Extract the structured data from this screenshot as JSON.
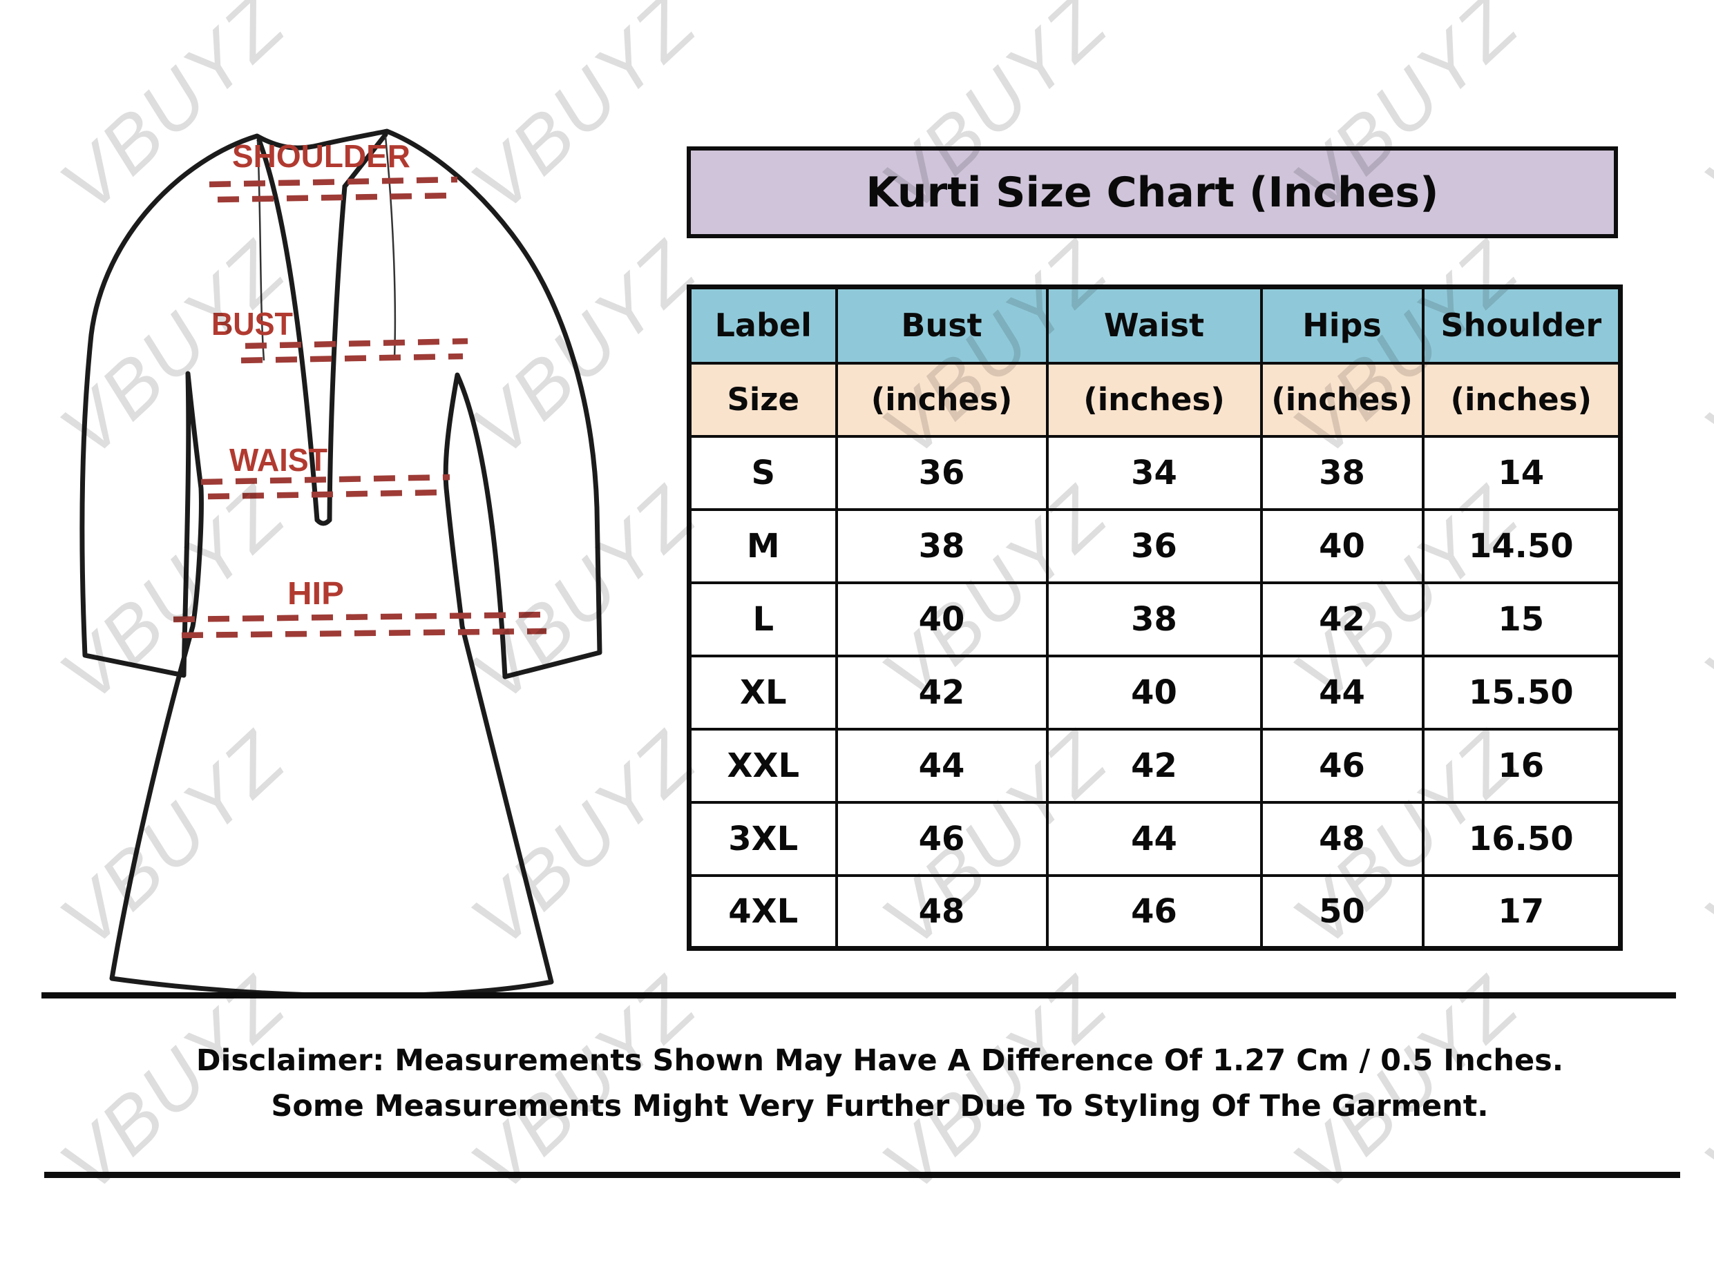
{
  "watermark": {
    "text": "VBUYZ",
    "color": "#dedede"
  },
  "title": {
    "text": "Kurti Size Chart (Inches)",
    "bg_color": "#cfc4d9"
  },
  "diagram": {
    "shoulder_label": "SHOULDER",
    "bust_label": "BUST",
    "waist_label": "WAIST",
    "hip_label": "HIP",
    "label_color": "#b13a30",
    "dash_color": "#9e3b36"
  },
  "size_table": {
    "header_bg": "#8fc9d9",
    "subheader_bg": "#fae3cd",
    "columns": [
      {
        "label": "Label",
        "sub": "Size"
      },
      {
        "label": "Bust",
        "sub": "(inches)"
      },
      {
        "label": "Waist",
        "sub": "(inches)"
      },
      {
        "label": "Hips",
        "sub": "(inches)"
      },
      {
        "label": "Shoulder",
        "sub": "(inches)"
      }
    ],
    "rows": [
      [
        "S",
        "36",
        "34",
        "38",
        "14"
      ],
      [
        "M",
        "38",
        "36",
        "40",
        "14.50"
      ],
      [
        "L",
        "40",
        "38",
        "42",
        "15"
      ],
      [
        "XL",
        "42",
        "40",
        "44",
        "15.50"
      ],
      [
        "XXL",
        "44",
        "42",
        "46",
        "16"
      ],
      [
        "3XL",
        "46",
        "44",
        "48",
        "16.50"
      ],
      [
        "4XL",
        "48",
        "46",
        "50",
        "17"
      ]
    ]
  },
  "disclaimer": {
    "line1": "Disclaimer: Measurements Shown May Have A Difference Of 1.27 Cm / 0.5 Inches.",
    "line2": "Some Measurements Might Very Further Due To Styling Of The Garment."
  },
  "chart_data": {
    "type": "table",
    "title": "Kurti Size Chart (Inches)",
    "columns": [
      "Label Size",
      "Bust (inches)",
      "Waist (inches)",
      "Hips (inches)",
      "Shoulder (inches)"
    ],
    "rows": [
      [
        "S",
        36,
        34,
        38,
        14
      ],
      [
        "M",
        38,
        36,
        40,
        14.5
      ],
      [
        "L",
        40,
        38,
        42,
        15
      ],
      [
        "XL",
        42,
        40,
        44,
        15.5
      ],
      [
        "XXL",
        44,
        42,
        46,
        16
      ],
      [
        "3XL",
        46,
        44,
        48,
        16.5
      ],
      [
        "4XL",
        48,
        46,
        50,
        17
      ]
    ]
  }
}
